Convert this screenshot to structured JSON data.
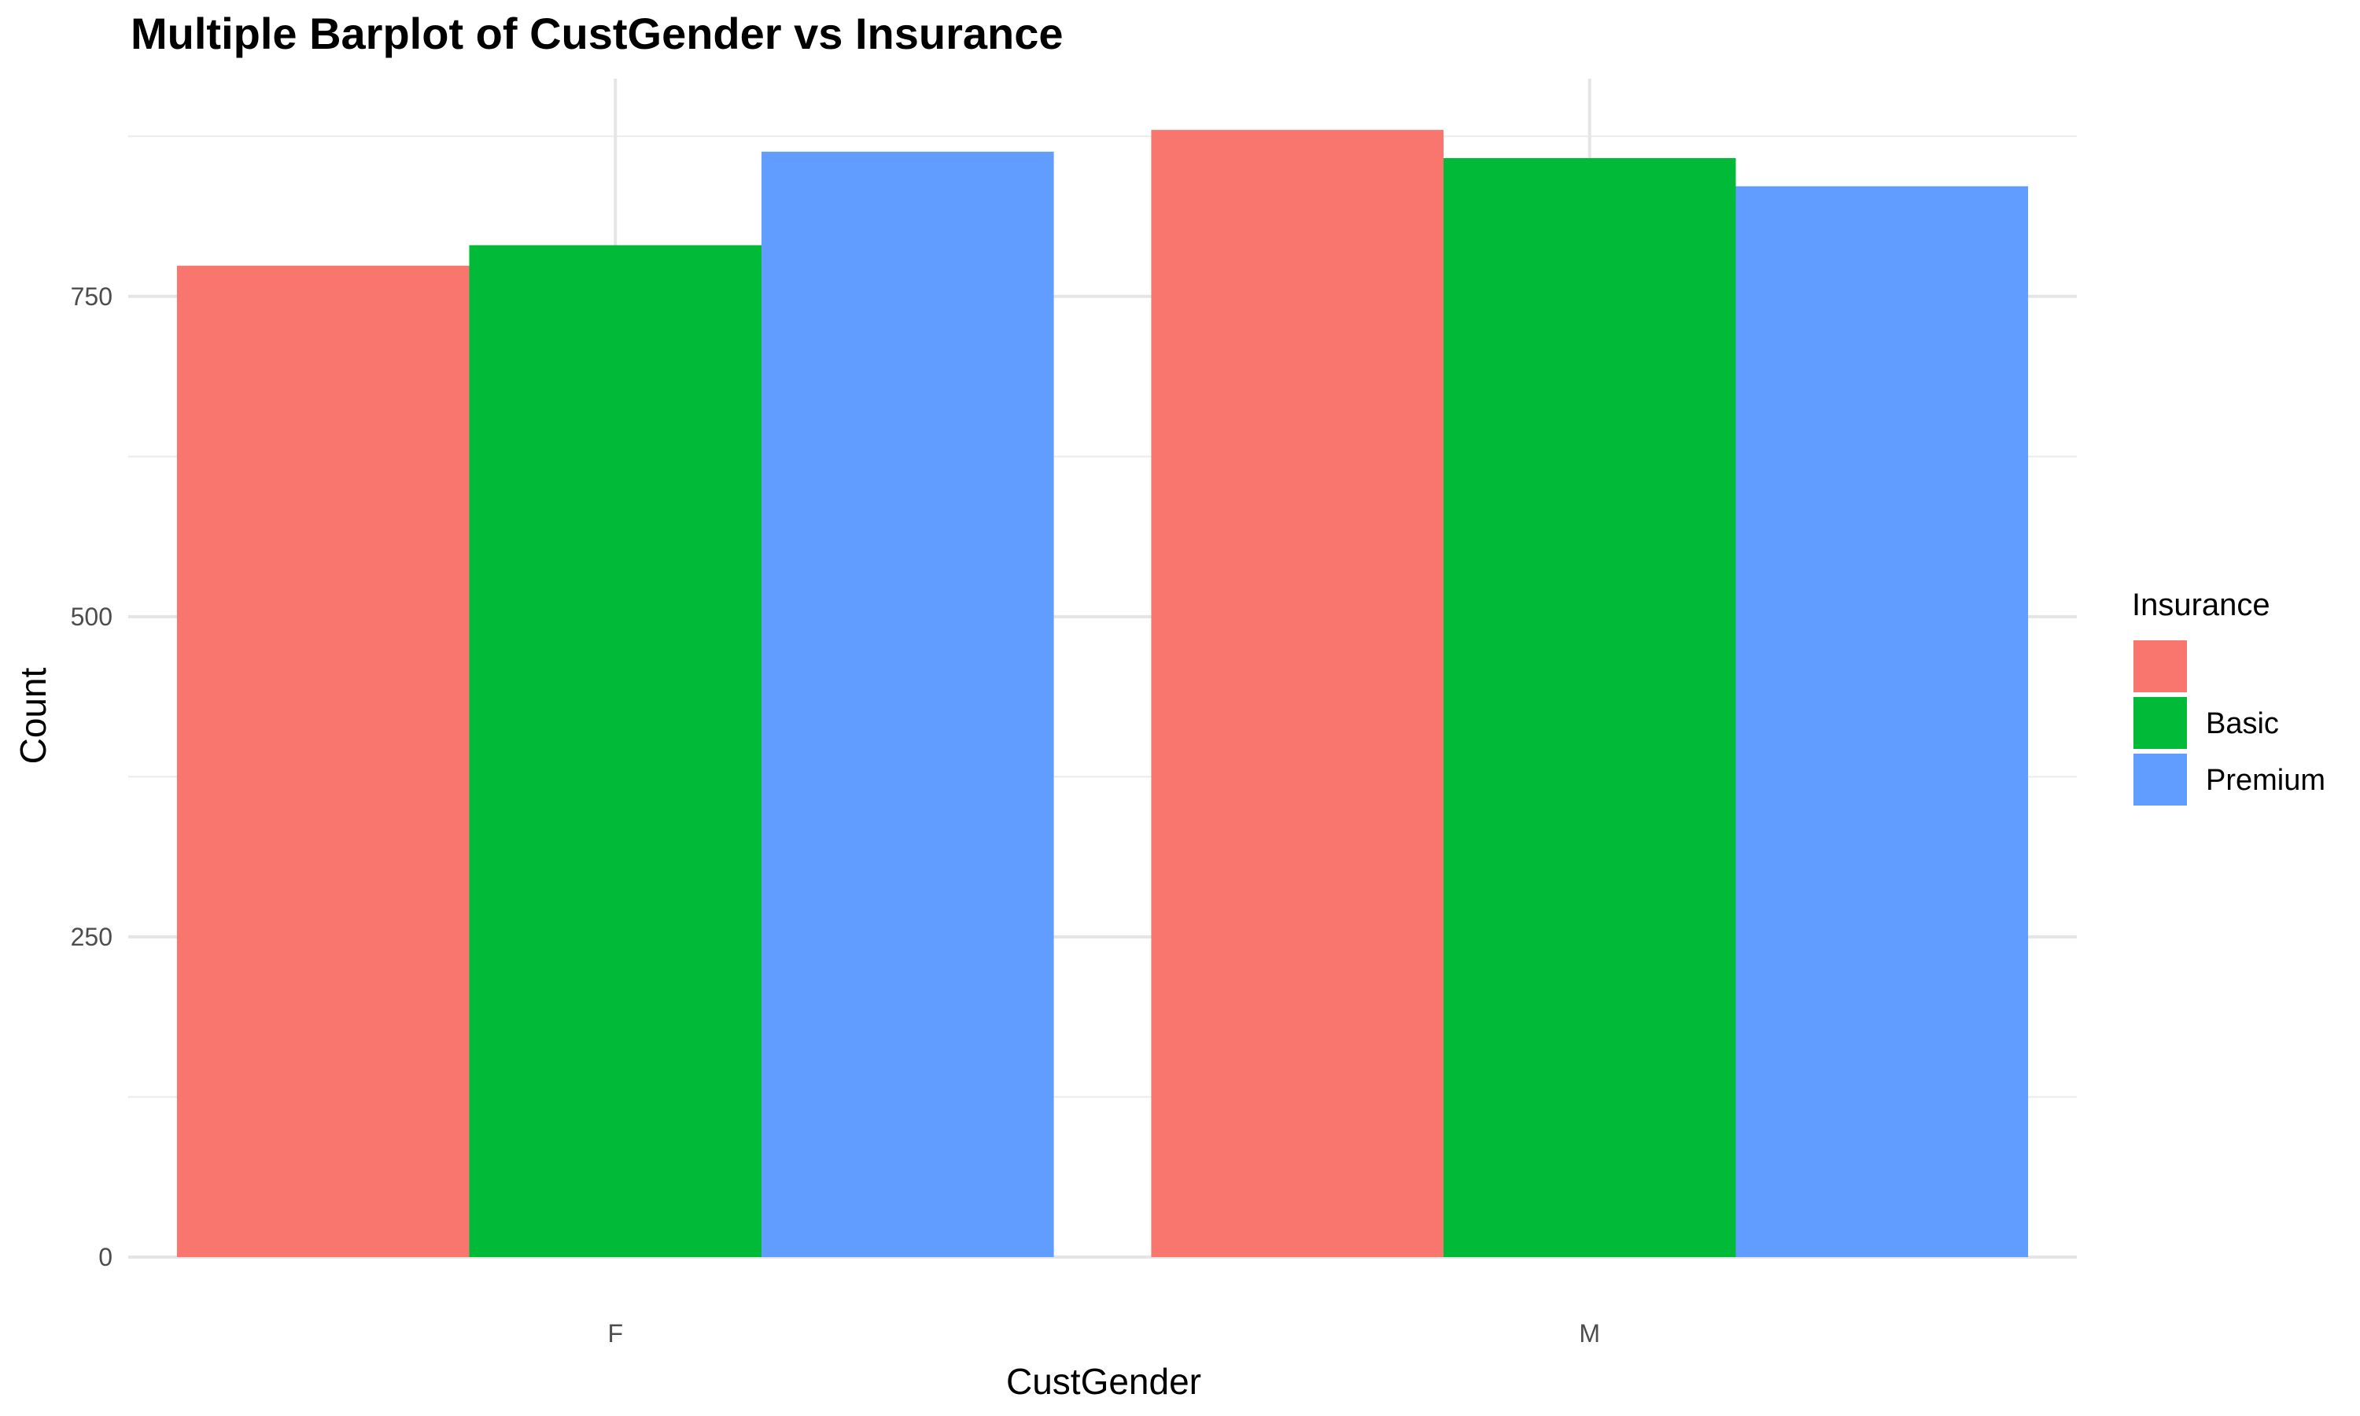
{
  "chart_data": {
    "type": "bar",
    "title": "Multiple Barplot of CustGender vs Insurance",
    "xlabel": "CustGender",
    "ylabel": "Count",
    "categories": [
      "F",
      "M"
    ],
    "series": [
      {
        "name": "",
        "values": [
          774,
          880
        ],
        "color": "#F8766D"
      },
      {
        "name": "Basic",
        "values": [
          790,
          858
        ],
        "color": "#00BA38"
      },
      {
        "name": "Premium",
        "values": [
          863,
          836
        ],
        "color": "#619CFF"
      }
    ],
    "ylim": [
      0,
      920
    ],
    "yticks": [
      0,
      250,
      500,
      750
    ],
    "legend": {
      "title": "Insurance",
      "position": "right"
    },
    "grid": true
  }
}
